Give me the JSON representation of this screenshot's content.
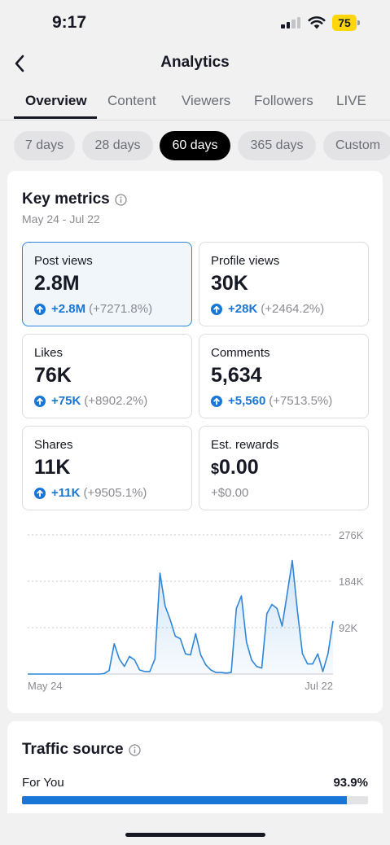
{
  "status_bar": {
    "time": "9:17",
    "battery": "75",
    "battery_color": "#ffd60a"
  },
  "header": {
    "title": "Analytics",
    "back_icon": "chevron-left-icon"
  },
  "tabs": [
    {
      "label": "Overview",
      "active": true
    },
    {
      "label": "Content",
      "active": false
    },
    {
      "label": "Viewers",
      "active": false
    },
    {
      "label": "Followers",
      "active": false
    },
    {
      "label": "LIVE",
      "active": false
    }
  ],
  "date_ranges": [
    {
      "label": "7 days",
      "active": false
    },
    {
      "label": "28 days",
      "active": false
    },
    {
      "label": "60 days",
      "active": true
    },
    {
      "label": "365 days",
      "active": false
    },
    {
      "label": "Custom",
      "active": false
    }
  ],
  "key_metrics": {
    "title": "Key metrics",
    "date_range": "May 24 - Jul 22",
    "metrics": [
      {
        "label": "Post views",
        "value": "2.8M",
        "delta": "+2.8M",
        "delta_pct": "(+7271.8%)",
        "selected": true
      },
      {
        "label": "Profile views",
        "value": "30K",
        "delta": "+28K",
        "delta_pct": "(+2464.2%)",
        "selected": false
      },
      {
        "label": "Likes",
        "value": "76K",
        "delta": "+75K",
        "delta_pct": "(+8902.2%)",
        "selected": false
      },
      {
        "label": "Comments",
        "value": "5,634",
        "delta": "+5,560",
        "delta_pct": "(+7513.5%)",
        "selected": false
      },
      {
        "label": "Shares",
        "value": "11K",
        "delta": "+11K",
        "delta_pct": "(+9505.1%)",
        "selected": false
      },
      {
        "label": "Est. rewards",
        "currency": "$",
        "value": "0.00",
        "delta": "+$0.00",
        "selected": false
      }
    ]
  },
  "chart_data": {
    "type": "area",
    "series": [
      {
        "values": [
          0,
          0,
          0,
          0,
          0,
          0,
          0,
          0,
          0,
          0,
          0,
          0,
          0,
          0,
          0,
          1,
          7,
          60,
          30,
          15,
          35,
          28,
          8,
          5,
          5,
          30,
          200,
          135,
          108,
          75,
          70,
          40,
          38,
          80,
          38,
          18,
          8,
          3,
          3,
          2,
          3,
          130,
          155,
          63,
          28,
          15,
          12,
          120,
          138,
          130,
          95,
          160,
          225,
          125,
          40,
          20,
          20,
          40,
          5,
          40,
          105
        ]
      }
    ],
    "x_start_label": "May 24",
    "x_end_label": "Jul 22",
    "y_ticks": [
      "92K",
      "184K",
      "276K"
    ],
    "y_tick_values": [
      92,
      184,
      276
    ],
    "ylim": [
      0,
      276
    ],
    "grid": true,
    "line_color": "#2f86d8"
  },
  "traffic_source": {
    "title": "Traffic source",
    "rows": [
      {
        "label": "For You",
        "value": "93.9%",
        "fraction": 0.939
      }
    ],
    "bar_color": "#1877d6"
  }
}
